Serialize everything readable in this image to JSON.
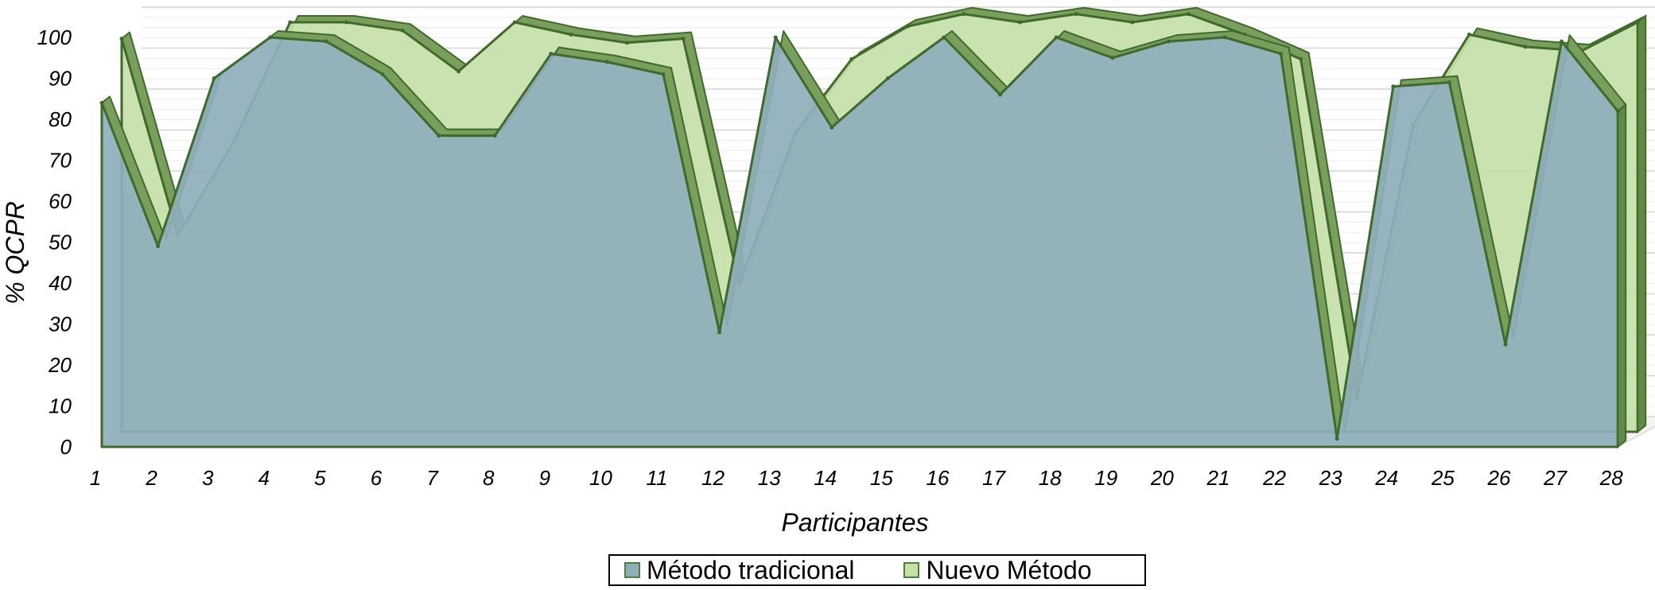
{
  "chart_data": {
    "type": "area",
    "xlabel": "Participantes",
    "ylabel": "% QCPR",
    "ylim": [
      0,
      100
    ],
    "yticks": [
      "0",
      "10",
      "20",
      "30",
      "40",
      "50",
      "60",
      "70",
      "80",
      "90",
      "100"
    ],
    "categories": [
      "1",
      "2",
      "3",
      "4",
      "5",
      "6",
      "7",
      "8",
      "9",
      "10",
      "11",
      "12",
      "13",
      "14",
      "15",
      "16",
      "17",
      "18",
      "19",
      "20",
      "21",
      "22",
      "23",
      "24",
      "25",
      "26",
      "27",
      "28"
    ],
    "grid": true,
    "legend": "bottom",
    "series": [
      {
        "name": "Método tradicional",
        "color": "#8faebb",
        "values": [
          84,
          49,
          90,
          100,
          99,
          91,
          76,
          76,
          96,
          94,
          91,
          28,
          100,
          78,
          90,
          100,
          86,
          100,
          95,
          99,
          100,
          96,
          2,
          88,
          89,
          25,
          99,
          82
        ]
      },
      {
        "name": "Nuevo Método",
        "color": "#c6e0a8",
        "values": [
          96,
          48,
          71,
          100,
          100,
          98,
          88,
          100,
          97,
          95,
          96,
          36,
          73,
          91,
          99,
          102,
          100,
          102,
          100,
          102,
          97,
          91,
          8,
          75,
          97,
          94,
          93,
          100
        ]
      }
    ]
  }
}
